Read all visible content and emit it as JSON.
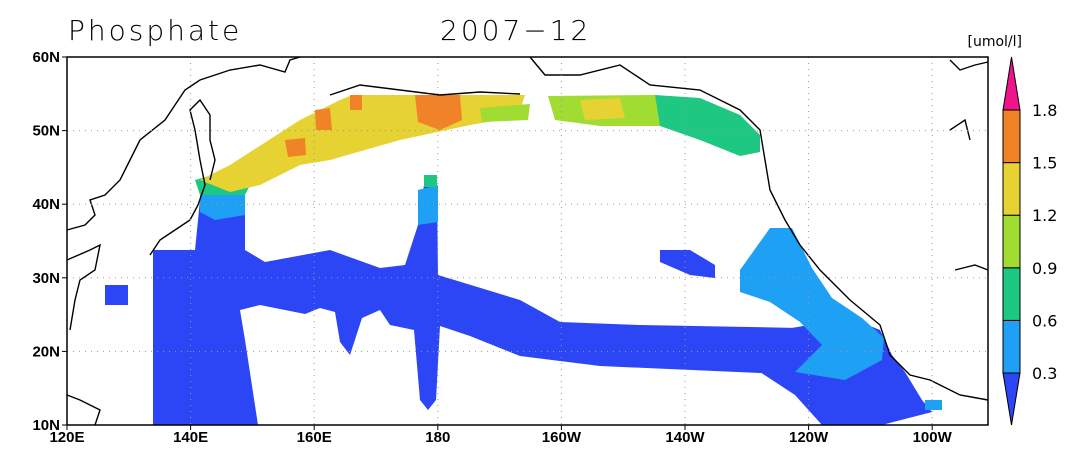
{
  "title": "Phosphate",
  "date": "2007−12",
  "unit": "[umol/l]",
  "lat_labels": [
    "60N",
    "50N",
    "40N",
    "30N",
    "20N",
    "10N"
  ],
  "lon_labels": [
    "120E",
    "140E",
    "160E",
    "180",
    "160W",
    "140W",
    "120W",
    "100W"
  ],
  "colorbar": {
    "labels": [
      "0.3",
      "0.6",
      "0.9",
      "1.2",
      "1.5",
      "1.8"
    ],
    "colors": [
      "#2d46f5",
      "#1ea0f5",
      "#1ec882",
      "#a0dc32",
      "#e6d232",
      "#f08228",
      "#f0148c"
    ]
  }
}
